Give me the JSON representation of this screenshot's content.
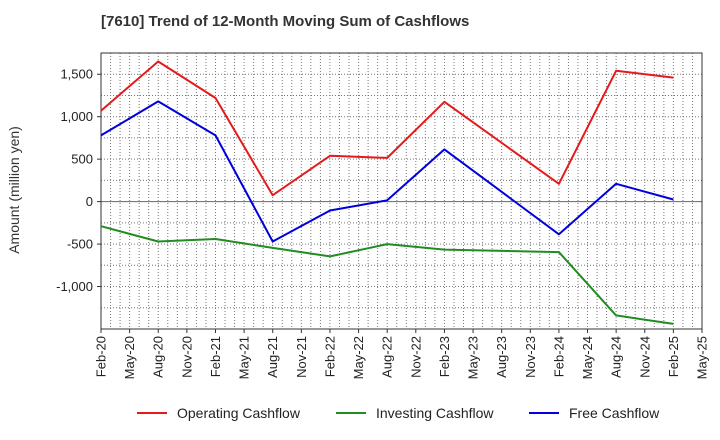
{
  "chart_data": {
    "type": "line",
    "title": "[7610]  Trend of 12-Month Moving Sum of Cashflows",
    "xlabel": "",
    "ylabel": "Amount (million yen)",
    "x_tick_labels": [
      "Feb-20",
      "May-20",
      "Aug-20",
      "Nov-20",
      "Feb-21",
      "May-21",
      "Aug-21",
      "Nov-21",
      "Feb-22",
      "May-22",
      "Aug-22",
      "Nov-22",
      "Feb-23",
      "May-23",
      "Aug-23",
      "Nov-23",
      "Feb-24",
      "May-24",
      "Aug-24",
      "Nov-24",
      "Feb-25",
      "May-25"
    ],
    "y_ticks": [
      1500,
      1000,
      500,
      0,
      -500,
      -1000
    ],
    "y_tick_labels": [
      "1,500",
      "1,000",
      "500",
      "0",
      "-500",
      "-1,000"
    ],
    "ylim": [
      -1500,
      1750
    ],
    "x": [
      "Feb-20",
      "Aug-20",
      "Feb-21",
      "Aug-21",
      "Feb-22",
      "Aug-22",
      "Feb-23",
      "Feb-24",
      "Aug-24",
      "Feb-25"
    ],
    "grid": true,
    "legend_position": "bottom",
    "series": [
      {
        "name": "Operating Cashflow",
        "color": "#e41a1c",
        "values": [
          1070,
          1650,
          1220,
          75,
          540,
          515,
          1175,
          210,
          1540,
          1460
        ]
      },
      {
        "name": "Investing Cashflow",
        "color": "#228b22",
        "values": [
          -290,
          -470,
          -440,
          -545,
          -645,
          -500,
          -565,
          -595,
          -1340,
          -1440
        ]
      },
      {
        "name": "Free Cashflow",
        "color": "#0000dd",
        "values": [
          780,
          1180,
          780,
          -470,
          -105,
          15,
          615,
          -385,
          210,
          25
        ]
      }
    ]
  }
}
